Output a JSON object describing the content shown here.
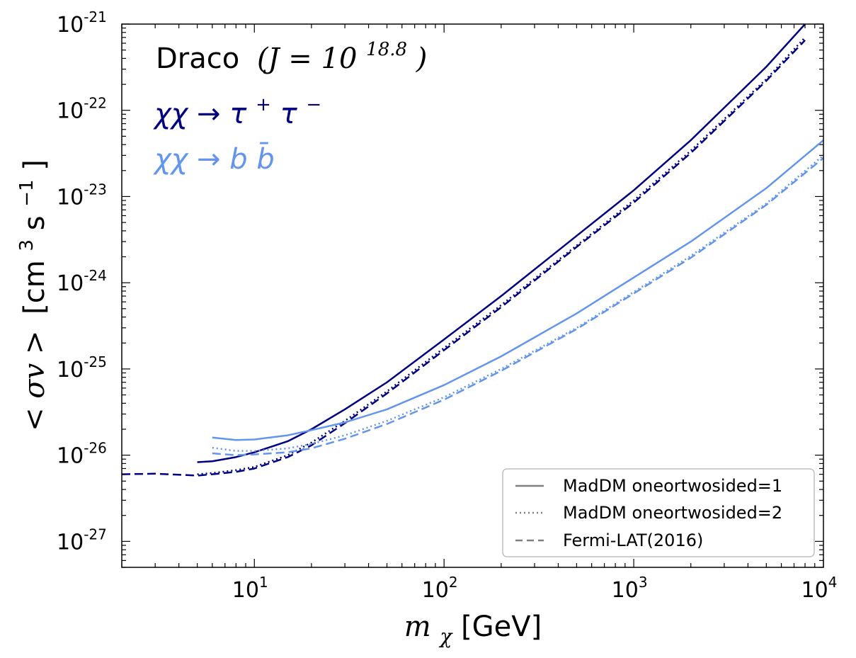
{
  "colors": {
    "tau": "#000080",
    "bb": "#6495ed",
    "legend_line": "#808080",
    "frame": "#000000"
  },
  "annotations": {
    "draco_word": "Draco",
    "draco_math": "(J = 10",
    "draco_exp": "18.8",
    "draco_close": ")",
    "tau_channel": "χχ → τ",
    "tau_plus": "+",
    "tau_tau": "τ",
    "tau_minus": "−",
    "bb_channel": "χχ → b",
    "bb_bbar": "b̄"
  },
  "chart_data": {
    "type": "line",
    "x_scale": "log",
    "y_scale": "log",
    "xlim": [
      2,
      10000
    ],
    "ylim": [
      5e-28,
      1e-21
    ],
    "xlabel_math": "m",
    "xlabel_sub": "χ",
    "xlabel_unit": " [GeV]",
    "ylabel_math": "< σv >",
    "ylabel_unit": " [cm",
    "ylabel_cm_exp": "3",
    "ylabel_s": " s",
    "ylabel_s_exp": "−1",
    "ylabel_close": "]",
    "x_ticks": [
      {
        "value": 10,
        "base": "10",
        "exp": "1"
      },
      {
        "value": 100,
        "base": "10",
        "exp": "2"
      },
      {
        "value": 1000,
        "base": "10",
        "exp": "3"
      },
      {
        "value": 10000,
        "base": "10",
        "exp": "4"
      }
    ],
    "y_ticks": [
      {
        "value": 1e-27,
        "base": "10",
        "exp": "-27"
      },
      {
        "value": 1e-26,
        "base": "10",
        "exp": "-26"
      },
      {
        "value": 1e-25,
        "base": "10",
        "exp": "-25"
      },
      {
        "value": 1e-24,
        "base": "10",
        "exp": "-24"
      },
      {
        "value": 1e-23,
        "base": "10",
        "exp": "-23"
      },
      {
        "value": 1e-22,
        "base": "10",
        "exp": "-22"
      },
      {
        "value": 1e-21,
        "base": "10",
        "exp": "-21"
      }
    ],
    "grid": false,
    "legend_position": "bottom-right",
    "legend": [
      {
        "label": "MadDM oneortwosided=1",
        "style": "solid"
      },
      {
        "label": "MadDM oneortwosided=2",
        "style": "dotted"
      },
      {
        "label": "Fermi-LAT(2016)",
        "style": "dashed"
      }
    ],
    "series": [
      {
        "channel": "tau",
        "style": "solid",
        "x": [
          5,
          6,
          8,
          10,
          15,
          20,
          30,
          50,
          100,
          200,
          500,
          1000,
          2000,
          5000,
          8000
        ],
        "y": [
          8.3e-27,
          8.5e-27,
          9.5e-27,
          1.08e-26,
          1.45e-26,
          2e-26,
          3.4e-26,
          7e-26,
          2.2e-25,
          7e-25,
          3.5e-24,
          1.18e-23,
          4.5e-23,
          3.2e-22,
          1e-21
        ]
      },
      {
        "channel": "tau",
        "style": "dotted",
        "x": [
          5,
          6,
          8,
          10,
          15,
          20,
          30,
          50,
          100,
          200,
          500,
          1000,
          2000,
          5000,
          8000
        ],
        "y": [
          6e-27,
          6.2e-27,
          6.7e-27,
          7.3e-27,
          1e-26,
          1.4e-26,
          2.5e-26,
          5.5e-26,
          1.75e-25,
          5.5e-25,
          2.7e-24,
          9e-24,
          3.4e-23,
          2.3e-22,
          7e-22
        ]
      },
      {
        "channel": "tau",
        "style": "dashed",
        "x": [
          2,
          3,
          5,
          6,
          8,
          10,
          15,
          20,
          30,
          50,
          100,
          200,
          500,
          1000,
          2000,
          5000,
          8000
        ],
        "y": [
          6e-27,
          6.1e-27,
          5.8e-27,
          6e-27,
          6.4e-27,
          7e-27,
          9.5e-27,
          1.3e-26,
          2.35e-26,
          5.2e-26,
          1.65e-25,
          5.2e-25,
          2.6e-24,
          8.5e-24,
          3.2e-23,
          2.2e-22,
          6.5e-22
        ]
      },
      {
        "channel": "bb",
        "style": "solid",
        "x": [
          6,
          8,
          10,
          15,
          20,
          30,
          50,
          100,
          200,
          500,
          1000,
          2000,
          5000,
          10000
        ],
        "y": [
          1.6e-26,
          1.5e-26,
          1.52e-26,
          1.7e-26,
          1.95e-26,
          2.4e-26,
          3.4e-26,
          6.5e-26,
          1.4e-25,
          4.4e-25,
          1.15e-24,
          3e-24,
          1.25e-23,
          4.5e-23
        ]
      },
      {
        "channel": "bb",
        "style": "dotted",
        "x": [
          6,
          8,
          10,
          15,
          20,
          30,
          50,
          100,
          200,
          500,
          1000,
          2000,
          5000,
          10000
        ],
        "y": [
          1.22e-26,
          1.12e-26,
          1.12e-26,
          1.2e-26,
          1.35e-26,
          1.7e-26,
          2.5e-26,
          4.7e-26,
          1e-25,
          3e-25,
          7.8e-25,
          2.05e-24,
          8.3e-24,
          3e-23
        ]
      },
      {
        "channel": "bb",
        "style": "dashed",
        "x": [
          6,
          8,
          10,
          15,
          20,
          30,
          50,
          100,
          200,
          500,
          1000,
          2000,
          5000,
          10000
        ],
        "y": [
          1.05e-26,
          1e-26,
          1.02e-26,
          1.08e-26,
          1.2e-26,
          1.55e-26,
          2.3e-26,
          4.4e-26,
          9.5e-26,
          2.9e-25,
          7.5e-25,
          1.95e-24,
          8e-24,
          2.8e-23
        ]
      }
    ]
  }
}
